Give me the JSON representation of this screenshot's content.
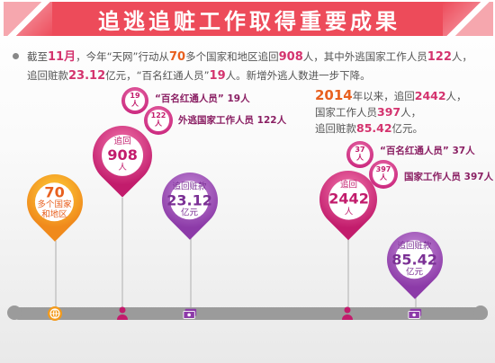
{
  "banner": {
    "title": "追逃追赃工作取得重要成果"
  },
  "intro": {
    "p1_a": "截至",
    "p1_b": "11月",
    "p1_c": "，今年“天网”行动从",
    "p1_d": "70",
    "p1_e": "多个国家和地区追回",
    "p1_f": "908",
    "p1_g": "人，其中外逃国家工作人员",
    "p1_h": "122",
    "p1_i": "人，",
    "p2_a": "追回赃款",
    "p2_b": "23.12",
    "p2_c": "亿元，“百名红通人员”",
    "p2_d": "19",
    "p2_e": "人。新增外逃人数进一步下降。"
  },
  "desc2": {
    "year": "2014",
    "line1": "年以来，追回",
    "v1": "2442",
    "u1": "人，",
    "line2": "国家工作人员",
    "v2": "397",
    "u2": "人，",
    "line3": "追回赃款",
    "v3": "85.42",
    "u3": "亿元。"
  },
  "pins": {
    "countries": {
      "big": "70",
      "small1": "多个国家",
      "small2": "和地区"
    },
    "recovered_2017": {
      "small1": "追回",
      "big": "908",
      "small2": "人"
    },
    "money_2017": {
      "small1": "追回赃款",
      "big": "23.12",
      "small2": "亿元"
    },
    "recovered_total": {
      "small1": "追回",
      "big": "2442",
      "small2": "人"
    },
    "money_total": {
      "small1": "追回赃款",
      "big": "85.42",
      "small2": "亿元"
    }
  },
  "bubbles": {
    "b19": {
      "num": "19",
      "unit": "人",
      "label": "“百名红通人员”",
      "value": "19人"
    },
    "b122": {
      "num": "122",
      "unit": "人",
      "label": "外逃国家工作人员",
      "value": "122人"
    },
    "b37": {
      "num": "37",
      "unit": "人",
      "label": "“百名红通人员”",
      "value": "37人"
    },
    "b397": {
      "num": "397",
      "unit": "人",
      "label": "国家工作人员",
      "value": "397人"
    }
  },
  "icons": {
    "globe": "globe-icon",
    "person": "person-icon",
    "cash": "cash-icon"
  }
}
